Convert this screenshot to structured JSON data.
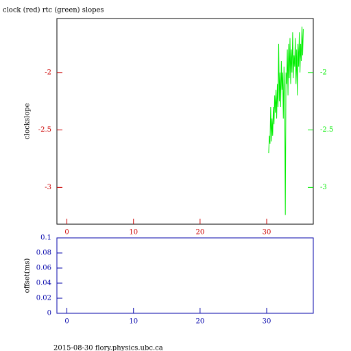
{
  "chart_data": [
    {
      "type": "line",
      "title": "clock (red) rtc (green) slopes",
      "y_label": "clockslope",
      "xlim": [
        -1.5,
        37
      ],
      "xticks": [
        0,
        10,
        20,
        30
      ],
      "ylim": [
        -3.32,
        -1.53
      ],
      "yticks": [
        -2,
        -2.5,
        -3
      ],
      "y2lim": [
        -3.32,
        -1.53
      ],
      "y2ticks": [
        -2,
        -2.5,
        -3
      ],
      "axis_color": "#cc0000",
      "y2_color": "#00ee00",
      "x": [
        30.3,
        30.4,
        30.5,
        30.6,
        30.7,
        30.8,
        30.9,
        31.0,
        31.1,
        31.2,
        31.3,
        31.4,
        31.5,
        31.6,
        31.7,
        31.8,
        31.9,
        32.0,
        32.1,
        32.2,
        32.3,
        32.4,
        32.5,
        32.6,
        32.7,
        32.8,
        32.9,
        33.0,
        33.1,
        33.2,
        33.3,
        33.4,
        33.5,
        33.6,
        33.7,
        33.8,
        33.9,
        34.0,
        34.1,
        34.2,
        34.3,
        34.4,
        34.5,
        34.6,
        34.7,
        34.8,
        34.9,
        35.0,
        35.1,
        35.2,
        35.3,
        35.4,
        35.5
      ],
      "series": [
        {
          "color": "#00ee00",
          "axis": "y2",
          "values": [
            -2.7,
            -2.55,
            -2.62,
            -2.3,
            -2.6,
            -2.4,
            -2.55,
            -2.3,
            -2.45,
            -2.2,
            -2.35,
            -2.15,
            -2.4,
            -2.1,
            -2.3,
            -1.75,
            -2.25,
            -2.0,
            -2.3,
            -1.9,
            -2.15,
            -2.0,
            -2.4,
            -1.95,
            -2.2,
            -3.24,
            -2.0,
            -2.1,
            -1.8,
            -2.2,
            -1.75,
            -2.05,
            -1.7,
            -2.1,
            -1.8,
            -2.0,
            -1.65,
            -2.05,
            -1.85,
            -1.95,
            -1.7,
            -2.1,
            -1.8,
            -2.2,
            -1.75,
            -1.95,
            -1.65,
            -2.0,
            -1.75,
            -1.9,
            -1.6,
            -1.85,
            -1.62
          ]
        }
      ]
    },
    {
      "type": "line",
      "y_label": "offset(ms)",
      "xlim": [
        -1.5,
        37
      ],
      "xticks": [
        0,
        10,
        20,
        30
      ],
      "ylim": [
        0,
        0.1
      ],
      "yticks": [
        0,
        0.02,
        0.04,
        0.06,
        0.08,
        0.1
      ],
      "axis_color": "#0000aa",
      "series": []
    }
  ],
  "footer": "2015-08-30 flory.physics.ubc.ca"
}
